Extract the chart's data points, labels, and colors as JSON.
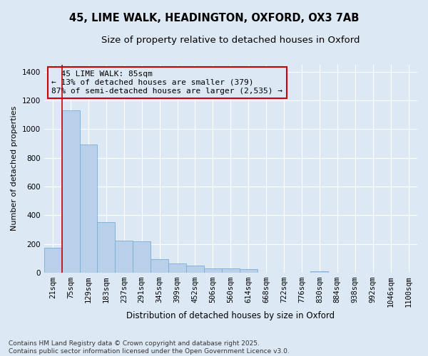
{
  "title_line1": "45, LIME WALK, HEADINGTON, OXFORD, OX3 7AB",
  "title_line2": "Size of property relative to detached houses in Oxford",
  "xlabel": "Distribution of detached houses by size in Oxford",
  "ylabel": "Number of detached properties",
  "bar_color": "#b8d0ea",
  "bar_edge_color": "#7aadd4",
  "background_color": "#dce9f5",
  "grid_color": "#ffffff",
  "annotation_box_color": "#cc0000",
  "vline_color": "#cc0000",
  "categories": [
    "21sqm",
    "75sqm",
    "129sqm",
    "183sqm",
    "237sqm",
    "291sqm",
    "345sqm",
    "399sqm",
    "452sqm",
    "506sqm",
    "560sqm",
    "614sqm",
    "668sqm",
    "722sqm",
    "776sqm",
    "830sqm",
    "884sqm",
    "938sqm",
    "992sqm",
    "1046sqm",
    "1100sqm"
  ],
  "values": [
    175,
    1130,
    890,
    350,
    220,
    215,
    95,
    65,
    50,
    30,
    30,
    22,
    0,
    0,
    0,
    10,
    0,
    0,
    0,
    0,
    0
  ],
  "ylim": [
    0,
    1450
  ],
  "yticks": [
    0,
    200,
    400,
    600,
    800,
    1000,
    1200,
    1400
  ],
  "vline_x": 0.5,
  "annotation_text": "  45 LIME WALK: 85sqm\n← 13% of detached houses are smaller (379)\n87% of semi-detached houses are larger (2,535) →",
  "footnote": "Contains HM Land Registry data © Crown copyright and database right 2025.\nContains public sector information licensed under the Open Government Licence v3.0.",
  "title_fontsize": 10.5,
  "subtitle_fontsize": 9.5,
  "annotation_fontsize": 8,
  "footnote_fontsize": 6.5,
  "axis_label_fontsize": 8.5,
  "tick_fontsize": 7.5,
  "ylabel_fontsize": 8
}
